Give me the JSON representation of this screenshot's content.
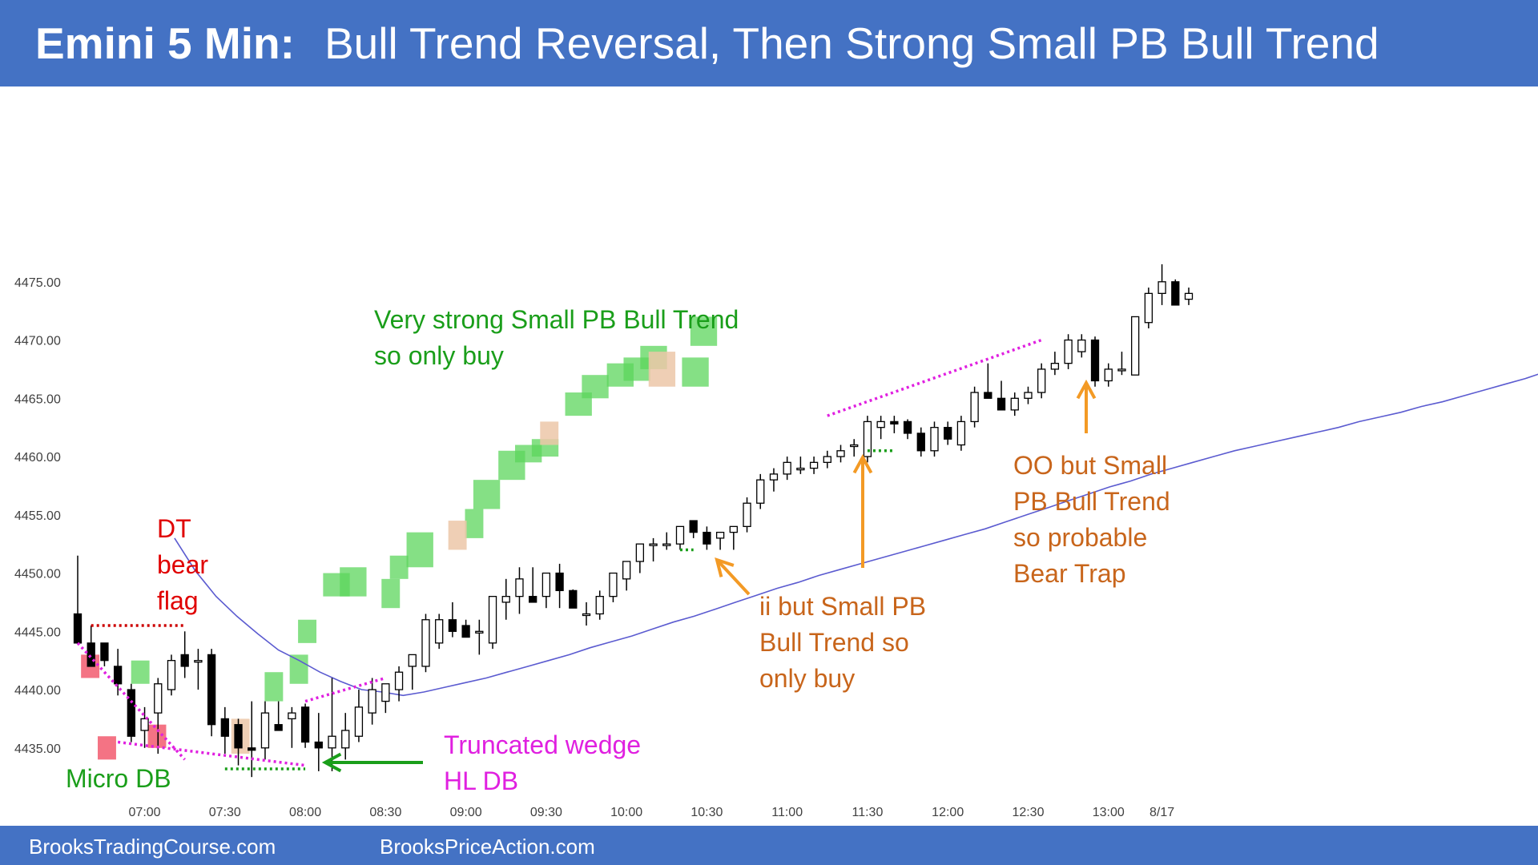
{
  "title": {
    "bold": "Emini 5 Min:",
    "rest": "Bull Trend Reversal, Then Strong Small PB Bull Trend"
  },
  "footer": {
    "left": "BrooksTradingCourse.com",
    "right": "BrooksPriceAction.com"
  },
  "colors": {
    "header": "#4472c4",
    "bull_bar": "#ffffff",
    "bear_bar": "#000000",
    "ema": "#5b5bd0",
    "green_box": "#5cd65c",
    "red_box": "#f25a6e",
    "tan_box": "#ecc7a8",
    "magenta_line": "#e020e0",
    "red_line": "#cc0000",
    "green_line": "#1a9e1a",
    "orange_arrow": "#f39a25",
    "green_arrow": "#1a9e1a"
  },
  "annotations": [
    {
      "id": "dt-bear-flag",
      "text": "DT\nbear\nflag",
      "color": "#e00000"
    },
    {
      "id": "micro-db",
      "text": "Micro DB",
      "color": "#1a9e1a"
    },
    {
      "id": "very-strong",
      "text": "Very strong Small PB Bull Trend\nso only buy",
      "color": "#1a9e1a"
    },
    {
      "id": "truncated-wedge",
      "text": "Truncated wedge\nHL DB",
      "color": "#e020e0"
    },
    {
      "id": "ii-but",
      "text": "ii but Small PB\nBull Trend so\nonly buy",
      "color": "#c8651b"
    },
    {
      "id": "oo-but",
      "text": "OO but Small\nPB Bull Trend\nso probable\nBear Trap",
      "color": "#c8651b"
    }
  ],
  "chart_data": {
    "type": "candlestick",
    "symbol": "Emini",
    "timeframe": "5 Min",
    "ylim": [
      4432,
      4478
    ],
    "y_ticks": [
      "4435.00",
      "4440.00",
      "4445.00",
      "4450.00",
      "4455.00",
      "4460.00",
      "4465.00",
      "4470.00",
      "4475.00"
    ],
    "y_tick_values": [
      4435,
      4440,
      4445,
      4450,
      4455,
      4460,
      4465,
      4470,
      4475
    ],
    "x_labels": [
      {
        "bar": 5,
        "label": "07:00"
      },
      {
        "bar": 11,
        "label": "07:30"
      },
      {
        "bar": 17,
        "label": "08:00"
      },
      {
        "bar": 23,
        "label": "08:30"
      },
      {
        "bar": 29,
        "label": "09:00"
      },
      {
        "bar": 35,
        "label": "09:30"
      },
      {
        "bar": 41,
        "label": "10:00"
      },
      {
        "bar": 47,
        "label": "10:30"
      },
      {
        "bar": 53,
        "label": "11:00"
      },
      {
        "bar": 59,
        "label": "11:30"
      },
      {
        "bar": 65,
        "label": "12:00"
      },
      {
        "bar": 71,
        "label": "12:30"
      },
      {
        "bar": 77,
        "label": "13:00"
      },
      {
        "bar": 81,
        "label": "8/17"
      }
    ],
    "bars": [
      [
        4446.5,
        4451.5,
        4445.0,
        4444.0
      ],
      [
        4444.0,
        4445.5,
        4443.5,
        4442.0
      ],
      [
        4444.0,
        4444.0,
        4442.0,
        4442.5
      ],
      [
        4442.0,
        4443.5,
        4439.5,
        4440.5
      ],
      [
        4440.0,
        4440.5,
        4435.5,
        4436.0
      ],
      [
        4436.5,
        4438.5,
        4435.0,
        4437.5
      ],
      [
        4438.0,
        4441.0,
        4434.5,
        4440.5
      ],
      [
        4440.0,
        4443.0,
        4439.5,
        4442.5
      ],
      [
        4443.0,
        4445.0,
        4441.0,
        4442.0
      ],
      [
        4442.5,
        4443.5,
        4440.0,
        4442.5
      ],
      [
        4443.0,
        4443.5,
        4436.0,
        4437.0
      ],
      [
        4437.5,
        4438.5,
        4434.5,
        4436.0
      ],
      [
        4437.0,
        4437.5,
        4433.5,
        4435.0
      ],
      [
        4435.0,
        4439.0,
        4432.5,
        4434.8
      ],
      [
        4435.0,
        4439.0,
        4434.0,
        4438.0
      ],
      [
        4437.0,
        4439.0,
        4436.5,
        4436.5
      ],
      [
        4437.5,
        4438.5,
        4435.0,
        4438.0
      ],
      [
        4438.5,
        4438.8,
        4435.0,
        4435.5
      ],
      [
        4435.5,
        4438.0,
        4433.0,
        4435.0
      ],
      [
        4435.0,
        4441.0,
        4433.0,
        4436.0
      ],
      [
        4435.0,
        4438.0,
        4434.0,
        4436.5
      ],
      [
        4436.0,
        4440.0,
        4435.5,
        4438.5
      ],
      [
        4438.0,
        4441.0,
        4437.0,
        4440.0
      ],
      [
        4439.0,
        4440.5,
        4438.0,
        4440.5
      ],
      [
        4440.0,
        4442.0,
        4439.0,
        4441.5
      ],
      [
        4442.0,
        4443.0,
        4440.0,
        4443.0
      ],
      [
        4442.0,
        4446.5,
        4441.5,
        4446.0
      ],
      [
        4444.0,
        4446.5,
        4443.5,
        4446.0
      ],
      [
        4446.0,
        4447.5,
        4444.5,
        4445.0
      ],
      [
        4445.5,
        4446.0,
        4444.5,
        4444.5
      ],
      [
        4445.0,
        4446.0,
        4443.0,
        4445.0
      ],
      [
        4444.0,
        4448.0,
        4443.5,
        4448.0
      ],
      [
        4447.5,
        4449.5,
        4446.0,
        4448.0
      ],
      [
        4448.0,
        4450.5,
        4446.5,
        4449.5
      ],
      [
        4448.0,
        4450.5,
        4447.5,
        4447.5
      ],
      [
        4448.0,
        4450.0,
        4447.0,
        4450.0
      ],
      [
        4450.0,
        4450.8,
        4447.0,
        4448.5
      ],
      [
        4448.5,
        4448.6,
        4447.0,
        4447.0
      ],
      [
        4446.5,
        4447.5,
        4445.5,
        4446.5
      ],
      [
        4446.5,
        4448.5,
        4446.0,
        4448.0
      ],
      [
        4448.0,
        4450.0,
        4447.5,
        4450.0
      ],
      [
        4449.5,
        4451.0,
        4448.5,
        4451.0
      ],
      [
        4451.0,
        4452.5,
        4450.0,
        4452.5
      ],
      [
        4452.5,
        4453.0,
        4451.0,
        4452.5
      ],
      [
        4452.5,
        4453.5,
        4452.0,
        4452.5
      ],
      [
        4452.5,
        4454.0,
        4452.0,
        4454.0
      ],
      [
        4454.5,
        4454.5,
        4453.0,
        4453.5
      ],
      [
        4453.5,
        4454.0,
        4452.0,
        4452.5
      ],
      [
        4453.0,
        4453.5,
        4452.0,
        4453.5
      ],
      [
        4453.5,
        4454.0,
        4452.0,
        4454.0
      ],
      [
        4454.0,
        4456.5,
        4453.5,
        4456.0
      ],
      [
        4456.0,
        4458.5,
        4455.5,
        4458.0
      ],
      [
        4458.0,
        4459.0,
        4457.0,
        4458.5
      ],
      [
        4458.5,
        4460.0,
        4458.0,
        4459.5
      ],
      [
        4459.0,
        4460.0,
        4458.5,
        4459.0
      ],
      [
        4459.0,
        4460.0,
        4458.5,
        4459.5
      ],
      [
        4459.5,
        4460.5,
        4459.0,
        4460.0
      ],
      [
        4460.0,
        4461.0,
        4459.5,
        4460.5
      ],
      [
        4461.0,
        4461.5,
        4460.0,
        4461.0
      ],
      [
        4460.0,
        4463.5,
        4459.5,
        4463.0
      ],
      [
        4462.5,
        4463.5,
        4461.5,
        4463.0
      ],
      [
        4463.0,
        4463.5,
        4462.0,
        4462.8
      ],
      [
        4463.0,
        4463.2,
        4461.5,
        4462.0
      ],
      [
        4462.0,
        4462.5,
        4460.0,
        4460.5
      ],
      [
        4460.5,
        4463.0,
        4460.0,
        4462.5
      ],
      [
        4462.5,
        4463.0,
        4461.0,
        4461.5
      ],
      [
        4461.0,
        4463.5,
        4460.5,
        4463.0
      ],
      [
        4463.0,
        4466.0,
        4462.5,
        4465.5
      ],
      [
        4465.5,
        4468.0,
        4465.0,
        4465.0
      ],
      [
        4465.0,
        4466.5,
        4464.0,
        4464.0
      ],
      [
        4464.0,
        4465.5,
        4463.5,
        4465.0
      ],
      [
        4465.0,
        4466.0,
        4464.5,
        4465.5
      ],
      [
        4465.5,
        4468.0,
        4465.0,
        4467.5
      ],
      [
        4467.5,
        4469.0,
        4467.0,
        4468.0
      ],
      [
        4468.0,
        4470.5,
        4467.5,
        4470.0
      ],
      [
        4469.0,
        4470.5,
        4468.5,
        4470.0
      ],
      [
        4470.0,
        4470.3,
        4466.0,
        4466.5
      ],
      [
        4466.5,
        4468.0,
        4466.0,
        4467.5
      ],
      [
        4467.5,
        4469.0,
        4467.0,
        4467.5
      ],
      [
        4467.0,
        4472.0,
        4467.0,
        4472.0
      ],
      [
        4471.5,
        4474.5,
        4471.0,
        4474.0
      ],
      [
        4474.0,
        4476.5,
        4473.0,
        4475.0
      ],
      [
        4475.0,
        4475.2,
        4473.0,
        4473.0
      ],
      [
        4473.5,
        4474.5,
        4473.0,
        4474.0
      ]
    ],
    "ema": [
      [
        4453.0,
        4450.2,
        4448.0,
        4446.3,
        4444.8,
        4443.4,
        4442.5,
        4441.5,
        4440.7,
        4440.0,
        4439.8,
        4439.5,
        4439.8,
        4440.2,
        4440.6,
        4441.0,
        4441.5,
        4442.0,
        4442.5,
        4443.0,
        4443.6,
        4444.1,
        4444.6,
        4445.2,
        4445.8,
        4446.3,
        4446.9,
        4447.5,
        4448.1,
        4448.7,
        4449.2,
        4449.8,
        4450.3,
        4450.8,
        4451.3,
        4451.8,
        4452.3,
        4452.8,
        4453.3,
        4453.8,
        4454.4,
        4455.0,
        4455.6,
        4456.2,
        4456.8,
        4457.4,
        4457.9,
        4458.5,
        4459.0,
        4459.5,
        4460.0,
        4460.5,
        4460.9,
        4461.3,
        4461.7,
        4462.1,
        4462.5,
        4463.0,
        4463.4,
        4463.8,
        4464.3,
        4464.7,
        4465.2,
        4465.7,
        4466.2,
        4466.7,
        4467.3,
        4467.9,
        4468.5
      ]
    ],
    "ema_start_bar": 14,
    "green_boxes": [
      [
        7,
        8,
        4440.5,
        4442.5
      ],
      [
        23,
        24,
        4439.0,
        4441.5
      ],
      [
        26,
        27,
        4440.5,
        4443.0
      ],
      [
        27,
        28,
        4444.0,
        4446.0
      ],
      [
        30,
        32,
        4448.0,
        4450.0
      ],
      [
        32,
        34,
        4448.0,
        4450.5
      ],
      [
        37,
        38,
        4447.0,
        4449.5
      ],
      [
        38,
        39,
        4449.5,
        4451.5
      ],
      [
        40,
        42,
        4450.5,
        4453.5
      ],
      [
        47,
        48,
        4453.0,
        4455.5
      ],
      [
        48,
        50,
        4455.5,
        4458.0
      ],
      [
        51,
        53,
        4458.0,
        4460.5
      ],
      [
        53,
        55,
        4459.5,
        4461.0
      ],
      [
        55,
        57,
        4460.0,
        4461.5
      ],
      [
        59,
        61,
        4463.5,
        4465.5
      ],
      [
        61,
        63,
        4465.0,
        4467.0
      ],
      [
        64,
        66,
        4466.0,
        4468.0
      ],
      [
        66,
        68,
        4466.5,
        4468.5
      ],
      [
        68,
        70,
        4467.5,
        4469.5
      ],
      [
        73,
        75,
        4466.0,
        4468.5
      ],
      [
        74,
        76,
        4469.5,
        4472.0
      ]
    ],
    "red_boxes": [
      [
        1,
        2,
        4441.0,
        4443.0
      ],
      [
        3,
        4,
        4434.0,
        4436.0
      ],
      [
        9,
        10,
        4435.0,
        4437.0
      ]
    ],
    "tan_boxes": [
      [
        19,
        20,
        4434.5,
        4437.5
      ],
      [
        45,
        46,
        4452.0,
        4454.5
      ],
      [
        56,
        57,
        4461.0,
        4463.0
      ],
      [
        69,
        71,
        4466.0,
        4469.0
      ]
    ],
    "magenta_lines": [
      [
        0,
        4444.0,
        8,
        4434.0
      ],
      [
        3,
        4435.5,
        17,
        4433.5
      ],
      [
        17,
        4439.0,
        23,
        4441.0
      ],
      [
        56,
        4463.5,
        72,
        4470.0
      ]
    ],
    "red_lines": [
      [
        1,
        4445.5,
        8,
        4445.5
      ]
    ],
    "green_lines": [
      [
        11,
        4433.2,
        17,
        4433.2
      ],
      [
        45,
        4452.0,
        46,
        4452.0
      ],
      [
        59,
        4460.5,
        61,
        4460.5
      ]
    ]
  }
}
